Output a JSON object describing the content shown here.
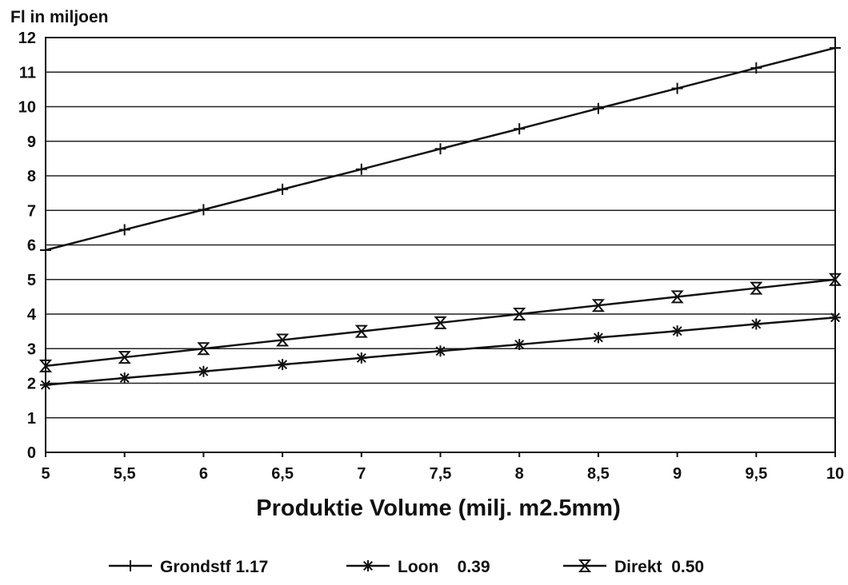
{
  "chart_data": {
    "type": "line",
    "title": "",
    "ylabel": "Fl in miljoen",
    "xlabel": "Produktie Volume (milj. m2.5mm)",
    "x": [
      5,
      5.5,
      6,
      6.5,
      7,
      7.5,
      8,
      8.5,
      9,
      9.5,
      10
    ],
    "x_tick_labels": [
      "5",
      "5,5",
      "6",
      "6,5",
      "7",
      "7,5",
      "8",
      "8,5",
      "9",
      "9,5",
      "10"
    ],
    "y_ticks": [
      0,
      1,
      2,
      3,
      4,
      5,
      6,
      7,
      8,
      9,
      10,
      11,
      12
    ],
    "y_tick_labels": [
      "0",
      "1",
      "2",
      "3",
      "4",
      "5",
      "6",
      "7",
      "8",
      "9",
      "10",
      "11",
      "12"
    ],
    "xlim": [
      5,
      10
    ],
    "ylim": [
      0,
      12
    ],
    "grid": "horizontal",
    "legend_placement": "bottom",
    "series": [
      {
        "name": "Grondstf 1.17",
        "marker": "plus",
        "values": [
          5.85,
          6.44,
          7.02,
          7.61,
          8.19,
          8.78,
          9.36,
          9.95,
          10.53,
          11.12,
          11.7
        ]
      },
      {
        "name": "Loon    0.39",
        "marker": "asterisk",
        "values": [
          1.95,
          2.15,
          2.34,
          2.54,
          2.73,
          2.93,
          3.12,
          3.32,
          3.51,
          3.71,
          3.9
        ]
      },
      {
        "name": "Direkt  0.50",
        "marker": "hourglass",
        "values": [
          2.5,
          2.75,
          3.0,
          3.25,
          3.5,
          3.75,
          4.0,
          4.25,
          4.5,
          4.75,
          5.0
        ]
      }
    ]
  }
}
